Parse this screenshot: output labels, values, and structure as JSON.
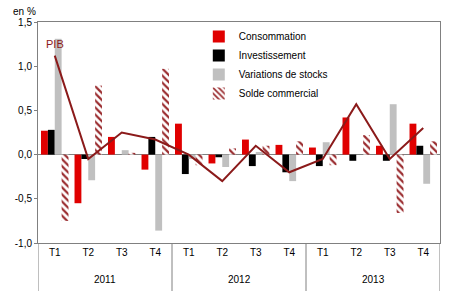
{
  "chart_data": {
    "type": "bar",
    "ylabel": "en %",
    "categories": [
      "T1",
      "T2",
      "T3",
      "T4",
      "T1",
      "T2",
      "T3",
      "T4",
      "T1",
      "T2",
      "T3",
      "T4"
    ],
    "groups": [
      "2011",
      "2012",
      "2013"
    ],
    "series": [
      {
        "name": "Consommation",
        "type": "bar",
        "color": "#e00000",
        "values": [
          0.27,
          -0.55,
          0.2,
          -0.17,
          0.35,
          -0.1,
          0.17,
          0.11,
          0.08,
          0.42,
          0.1,
          0.35
        ]
      },
      {
        "name": "Investissement",
        "type": "bar",
        "color": "#000000",
        "values": [
          0.28,
          -0.05,
          0.0,
          0.2,
          -0.22,
          -0.03,
          -0.13,
          -0.2,
          -0.13,
          -0.07,
          -0.07,
          0.1
        ]
      },
      {
        "name": "Variations de stocks",
        "type": "bar",
        "color": "#c0c0c0",
        "values": [
          1.31,
          -0.29,
          0.05,
          -0.86,
          -0.05,
          -0.14,
          0.03,
          -0.3,
          0.14,
          0.0,
          0.57,
          -0.33
        ]
      },
      {
        "name": "Solde commercial",
        "type": "bar",
        "color": "#9b2d30",
        "marker": "hatched",
        "values": [
          -0.75,
          0.78,
          0.02,
          0.97,
          -0.12,
          0.07,
          0.1,
          0.15,
          -0.12,
          0.22,
          -0.66,
          0.15
        ]
      },
      {
        "name": "PIB",
        "type": "line",
        "color": "#8b1a1a",
        "values": [
          1.12,
          -0.05,
          0.25,
          0.17,
          0.0,
          -0.3,
          0.1,
          -0.2,
          -0.05,
          0.57,
          -0.05,
          0.3
        ]
      }
    ],
    "ylim": [
      -1.0,
      1.5
    ],
    "yticks": [
      {
        "value": -1.0,
        "label": "-1,0"
      },
      {
        "value": -0.5,
        "label": "-0,5"
      },
      {
        "value": 0.0,
        "label": "0,0"
      },
      {
        "value": 0.5,
        "label": "0,5"
      },
      {
        "value": 1.0,
        "label": "1,0"
      },
      {
        "value": 1.5,
        "label": "1,5"
      }
    ],
    "grid": false,
    "legend": "top"
  }
}
